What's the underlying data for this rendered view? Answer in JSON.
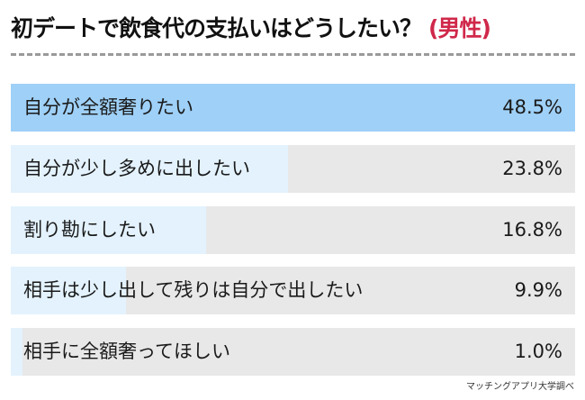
{
  "title": {
    "main": "初デートで飲食代の支払いはどうしたい？",
    "accent": "(男性)"
  },
  "source": "マッチングアプリ大学調べ",
  "colors": {
    "top_bar": "#9fd0f7",
    "bar": "#e3f2fd",
    "track": "#e8e8e8",
    "accent": "#d0284a"
  },
  "chart_data": {
    "type": "bar",
    "orientation": "horizontal",
    "categories": [
      "自分が全額奢りたい",
      "自分が少し多めに出したい",
      "割り勘にしたい",
      "相手は少し出して残りは自分で出したい",
      "相手に全額奢ってほしい"
    ],
    "values": [
      48.5,
      23.8,
      16.8,
      9.9,
      1.0
    ],
    "value_labels": [
      "48.5%",
      "23.8%",
      "16.8%",
      "9.9%",
      "1.0%"
    ],
    "unit": "%",
    "grid": false
  }
}
